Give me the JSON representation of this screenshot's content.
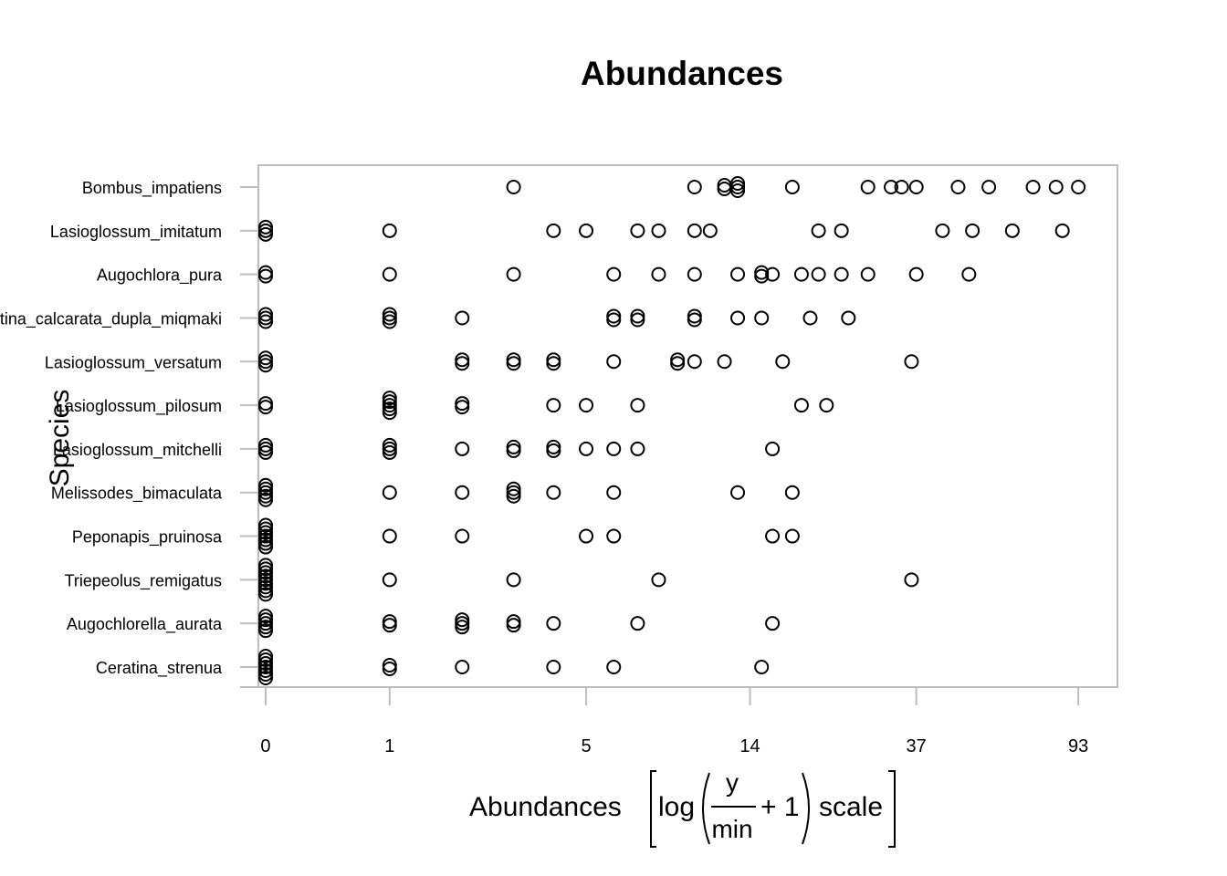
{
  "chart_data": {
    "type": "strip",
    "title": "Abundances",
    "ylabel": "Species",
    "xlabel": "Abundances",
    "xlabel_formula": {
      "func": "log",
      "numerator": "y",
      "denominator": "min",
      "addend": "+ 1",
      "suffix": "scale"
    },
    "xscale": "log1p",
    "xlim": [
      -0.04,
      116
    ],
    "xticks": [
      0,
      1,
      5,
      14,
      37,
      93
    ],
    "color": "#000000",
    "categories": [
      "Bombus_impatiens",
      "Lasioglossum_imitatum",
      "Augochlora_pura",
      "Ceratina_calcarata_dupla_miqmaki",
      "Lasioglossum_versatum",
      "Lasioglossum_pilosum",
      "Lasioglossum_mitchelli",
      "Melissodes_bimaculata",
      "Peponapis_pruinosa",
      "Triepeolus_remigatus",
      "Augochlorella_aurata",
      "Ceratina_strenua"
    ],
    "values": [
      [
        3,
        10,
        12,
        12,
        13,
        13,
        13,
        18,
        28,
        32,
        34,
        37,
        47,
        56,
        72,
        82,
        93
      ],
      [
        0,
        0,
        0,
        1,
        4,
        5,
        7,
        8,
        10,
        11,
        21,
        24,
        43,
        51,
        64,
        85
      ],
      [
        0,
        0,
        1,
        3,
        6,
        8,
        10,
        13,
        15,
        15,
        16,
        19,
        21,
        24,
        28,
        37,
        50
      ],
      [
        0,
        0,
        0,
        1,
        1,
        1,
        2,
        6,
        6,
        7,
        7,
        10,
        10,
        13,
        15,
        20,
        25
      ],
      [
        0,
        0,
        0,
        2,
        2,
        3,
        3,
        4,
        4,
        6,
        9,
        9,
        10,
        12,
        17,
        36
      ],
      [
        0,
        0,
        1,
        1,
        1,
        1,
        1,
        2,
        2,
        4,
        5,
        7,
        19,
        22
      ],
      [
        0,
        0,
        0,
        1,
        1,
        1,
        2,
        3,
        3,
        4,
        4,
        5,
        6,
        7,
        16
      ],
      [
        0,
        0,
        0,
        0,
        0,
        1,
        2,
        3,
        3,
        3,
        4,
        6,
        13,
        18
      ],
      [
        0,
        0,
        0,
        0,
        0,
        0,
        0,
        1,
        2,
        5,
        6,
        16,
        18
      ],
      [
        0,
        0,
        0,
        0,
        0,
        0,
        0,
        0,
        0,
        1,
        3,
        8,
        36
      ],
      [
        0,
        0,
        0,
        0,
        0,
        1,
        1,
        2,
        2,
        2,
        3,
        3,
        4,
        7,
        16
      ],
      [
        0,
        0,
        0,
        0,
        0,
        0,
        0,
        1,
        1,
        2,
        4,
        6,
        15
      ]
    ]
  }
}
